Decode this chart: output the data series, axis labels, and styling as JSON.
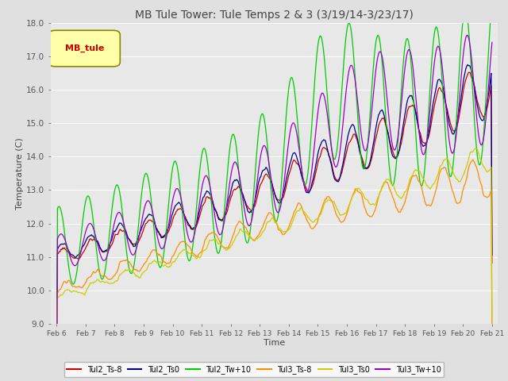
{
  "title": "MB Tule Tower: Tule Temps 2 & 3 (3/19/14-3/23/17)",
  "xlabel": "Time",
  "ylabel": "Temperature (C)",
  "ylim": [
    9.0,
    18.0
  ],
  "yticks": [
    9.0,
    10.0,
    11.0,
    12.0,
    13.0,
    14.0,
    15.0,
    16.0,
    17.0,
    18.0
  ],
  "xtick_labels": [
    "Feb 6",
    "Feb 7",
    "Feb 8",
    "Feb 9",
    "Feb 10",
    "Feb 11",
    "Feb 12",
    "Feb 13",
    "Feb 14",
    "Feb 15",
    "Feb 16",
    "Feb 17",
    "Feb 18",
    "Feb 19",
    "Feb 20",
    "Feb 21"
  ],
  "series_colors": [
    "#cc0000",
    "#00008b",
    "#00cc00",
    "#ff8c00",
    "#cccc00",
    "#9900cc"
  ],
  "series_labels": [
    "Tul2_Ts-8",
    "Tul2_Ts0",
    "Tul2_Tw+10",
    "Tul3_Ts-8",
    "Tul3_Ts0",
    "Tul3_Tw+10"
  ],
  "legend_label": "MB_tule",
  "background_color": "#e0e0e0",
  "plot_bg_color": "#e8e8e8",
  "grid_color": "#ffffff",
  "title_fontsize": 10,
  "axis_fontsize": 8,
  "legend_box_facecolor": "#ffffaa",
  "legend_box_edgecolor": "#888800"
}
